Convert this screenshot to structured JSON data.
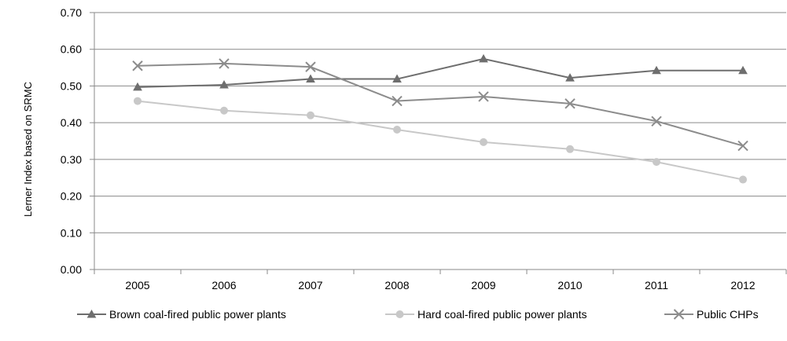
{
  "chart_data": {
    "type": "line",
    "title": "",
    "xlabel": "",
    "ylabel": "Lerner Index based on SRMC",
    "categories": [
      "2005",
      "2006",
      "2007",
      "2008",
      "2009",
      "2010",
      "2011",
      "2012"
    ],
    "ylim": [
      0,
      0.7
    ],
    "yticks": [
      "0.00",
      "0.10",
      "0.20",
      "0.30",
      "0.40",
      "0.50",
      "0.60",
      "0.70"
    ],
    "grid": true,
    "legend_position": "bottom",
    "series": [
      {
        "name": "Brown coal-fired public power plants",
        "marker": "triangle",
        "color": "#6e6e6e",
        "values": [
          0.497,
          0.503,
          0.519,
          0.519,
          0.574,
          0.522,
          0.542,
          0.542
        ]
      },
      {
        "name": "Hard coal-fired public power plants",
        "marker": "circle",
        "color": "#c8c8c8",
        "values": [
          0.459,
          0.433,
          0.42,
          0.381,
          0.347,
          0.328,
          0.293,
          0.245
        ]
      },
      {
        "name": "Public CHPs",
        "marker": "x",
        "color": "#8c8c8c",
        "values": [
          0.555,
          0.561,
          0.552,
          0.459,
          0.471,
          0.452,
          0.404,
          0.337
        ]
      }
    ]
  }
}
